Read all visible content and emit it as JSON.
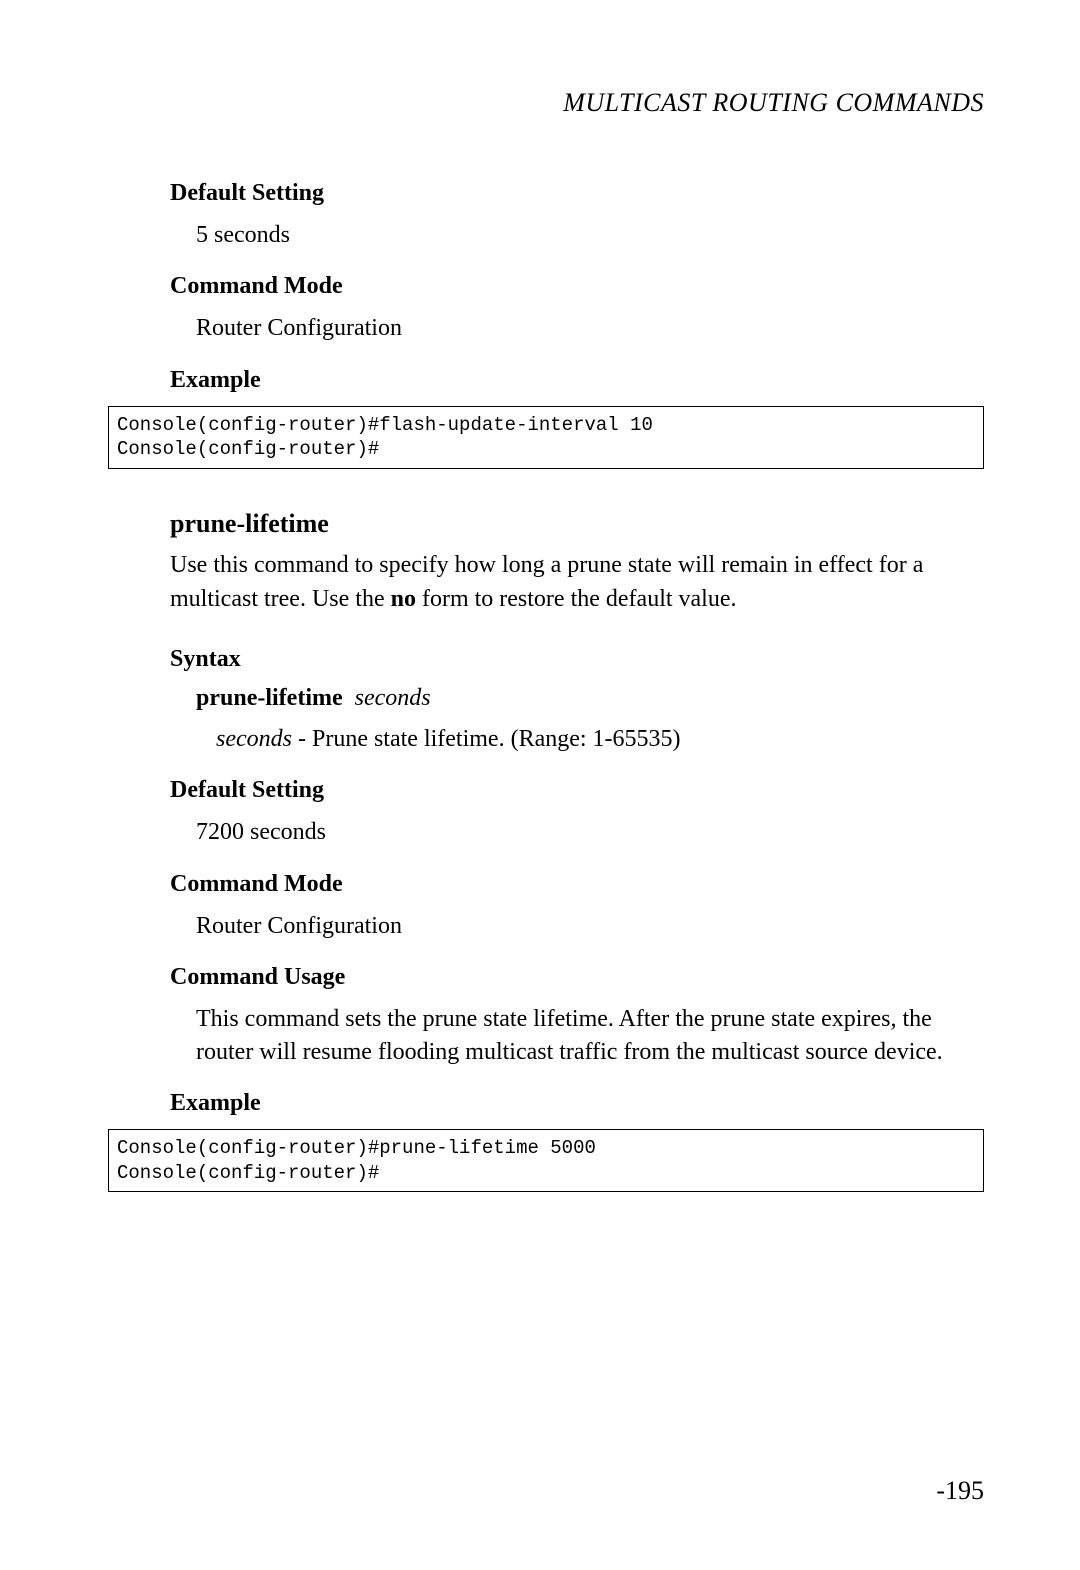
{
  "header": "MULTICAST ROUTING COMMANDS",
  "section1": {
    "defaultSetting": {
      "heading": "Default Setting",
      "body": "5 seconds"
    },
    "commandMode": {
      "heading": "Command Mode",
      "body": "Router Configuration"
    },
    "example": {
      "heading": "Example",
      "code": "Console(config-router)#flash-update-interval 10\nConsole(config-router)#"
    }
  },
  "section2": {
    "commandTitle": "prune-lifetime",
    "descriptionPart1": "Use this command to specify how long a prune state will remain in effect for a multicast tree. Use the ",
    "descriptionBold": "no",
    "descriptionPart2": " form to restore the default value.",
    "syntax": {
      "heading": "Syntax",
      "commandBold": "prune-lifetime",
      "commandItalic": "seconds",
      "paramItalic": "seconds",
      "paramText": " - Prune state lifetime. (Range: 1-65535)"
    },
    "defaultSetting": {
      "heading": "Default Setting",
      "body": "7200 seconds"
    },
    "commandMode": {
      "heading": "Command Mode",
      "body": "Router Configuration"
    },
    "commandUsage": {
      "heading": "Command Usage",
      "body": "This command sets the prune state lifetime. After the prune state expires, the router will resume flooding multicast traffic from the multicast source device."
    },
    "example": {
      "heading": "Example",
      "code": "Console(config-router)#prune-lifetime 5000\nConsole(config-router)#"
    }
  },
  "pageNumber": "-195"
}
